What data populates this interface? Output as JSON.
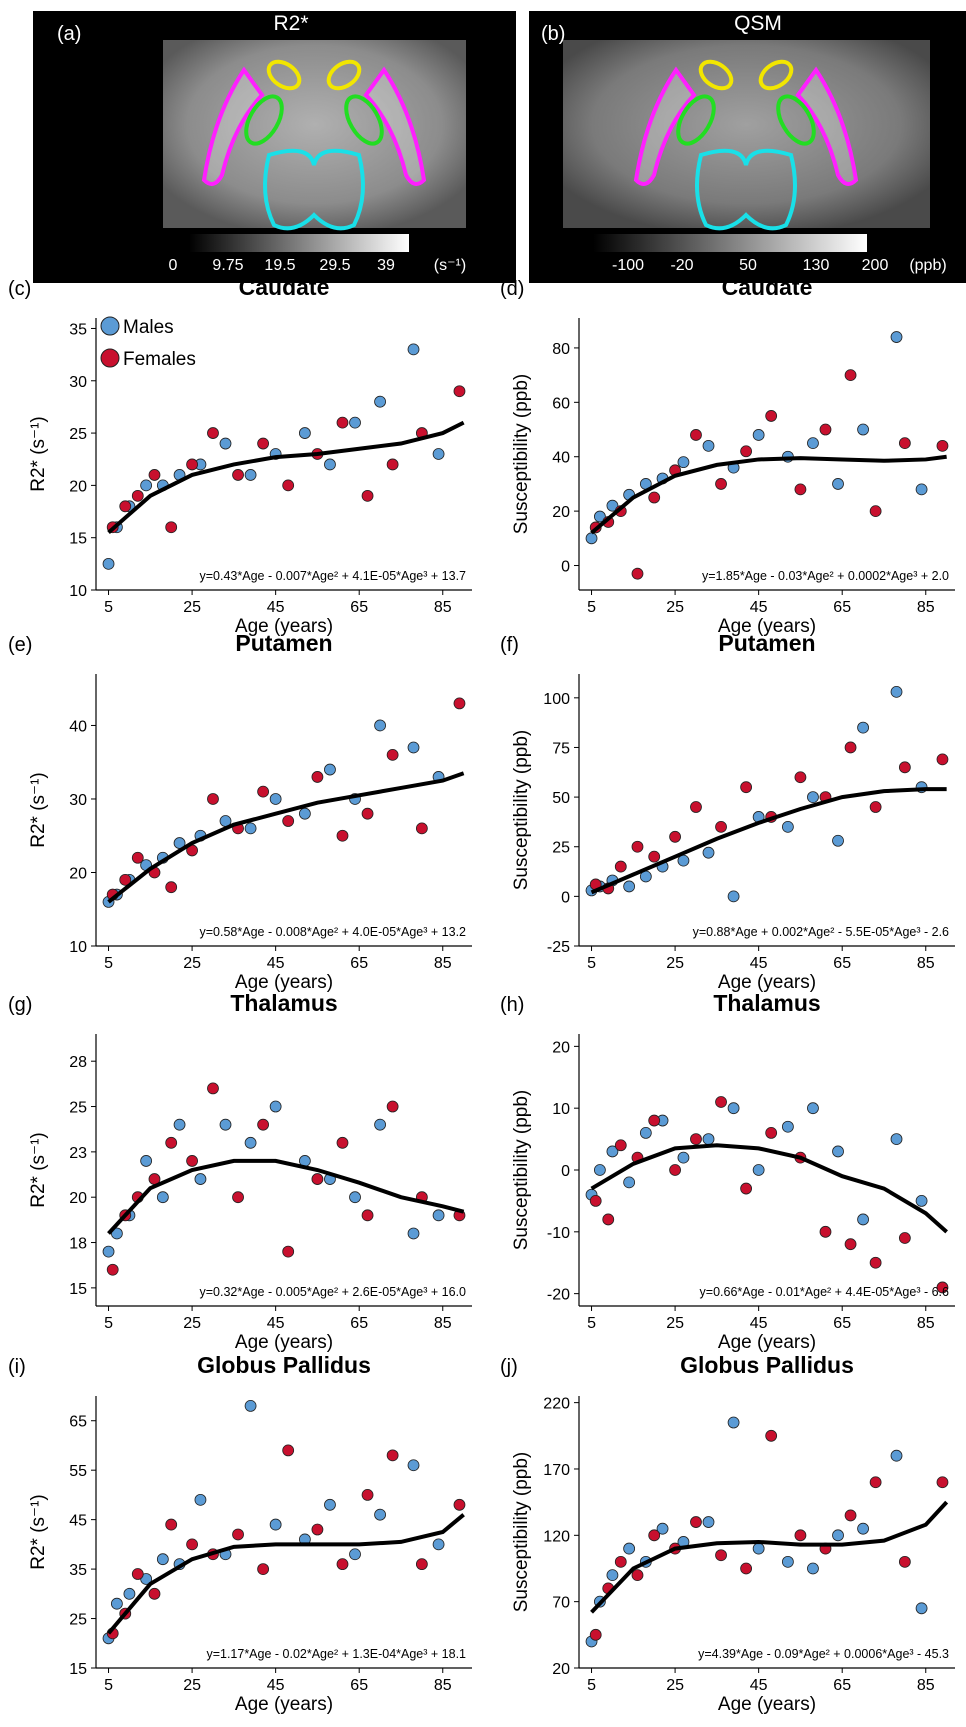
{
  "images": [
    {
      "label": "(a)",
      "title": "R2*",
      "colorbar_labels": [
        "0",
        "9.75",
        "19.5",
        "29.5",
        "39",
        "(s⁻¹)"
      ]
    },
    {
      "label": "(b)",
      "title": "QSM",
      "colorbar_labels": [
        "-100",
        "-20",
        "50",
        "130",
        "200",
        "(ppb)"
      ]
    }
  ],
  "chart_data": [
    {
      "type": "scatter",
      "label": "(c)",
      "title": "Caudate",
      "x_label": "Age (years)",
      "y_label": "R2* (s⁻¹)",
      "annotation": "y=0.43*Age - 0.007*Age² + 4.1E-05*Age³ + 13.7",
      "legend": "upper left",
      "xlim": [
        2,
        92
      ],
      "xticks": [
        5,
        25,
        45,
        65,
        85
      ],
      "ylim": [
        10,
        36
      ],
      "yticks": [
        10,
        15,
        20,
        25,
        30,
        35
      ],
      "series": [
        {
          "name": "Males",
          "color": "#5b9bd5",
          "x": [
            5,
            7,
            10,
            14,
            18,
            22,
            27,
            33,
            39,
            45,
            52,
            58,
            64,
            70,
            78,
            84
          ],
          "values": [
            12.5,
            16,
            18,
            20,
            20,
            21,
            22,
            24,
            21,
            23,
            25,
            22,
            26,
            28,
            33,
            23
          ]
        },
        {
          "name": "Females",
          "color": "#c8102e",
          "x": [
            6,
            9,
            12,
            16,
            20,
            25,
            30,
            36,
            42,
            48,
            55,
            61,
            67,
            73,
            80,
            89
          ],
          "values": [
            16,
            18,
            19,
            21,
            16,
            22,
            25,
            21,
            24,
            20,
            23,
            26,
            19,
            22,
            25,
            29
          ]
        }
      ],
      "fit": {
        "color": "#000000",
        "x": [
          5,
          15,
          25,
          35,
          45,
          55,
          65,
          75,
          85,
          90
        ],
        "values": [
          15.5,
          19,
          21,
          22,
          22.7,
          23,
          23.5,
          24,
          25,
          26
        ]
      }
    },
    {
      "type": "scatter",
      "label": "(d)",
      "title": "Caudate",
      "x_label": "Age (years)",
      "y_label": "Susceptibility (ppb)",
      "annotation": "y=1.85*Age - 0.03*Age² + 0.0002*Age³ + 2.0",
      "xlim": [
        2,
        92
      ],
      "xticks": [
        5,
        25,
        45,
        65,
        85
      ],
      "ylim": [
        -9,
        91
      ],
      "yticks": [
        0,
        20,
        40,
        60,
        80
      ],
      "series": [
        {
          "color": "#5b9bd5",
          "x": [
            5,
            7,
            10,
            14,
            18,
            22,
            27,
            33,
            39,
            45,
            52,
            58,
            64,
            70,
            78,
            84
          ],
          "values": [
            10,
            18,
            22,
            26,
            30,
            32,
            38,
            44,
            36,
            48,
            40,
            45,
            30,
            50,
            84,
            28
          ]
        },
        {
          "color": "#c8102e",
          "x": [
            6,
            9,
            12,
            16,
            20,
            25,
            30,
            36,
            42,
            48,
            55,
            61,
            67,
            73,
            80,
            89
          ],
          "values": [
            14,
            16,
            20,
            -3,
            25,
            35,
            48,
            30,
            42,
            55,
            28,
            50,
            70,
            20,
            45,
            44
          ]
        }
      ],
      "fit": {
        "color": "#000000",
        "x": [
          5,
          15,
          25,
          35,
          45,
          55,
          65,
          75,
          85,
          90
        ],
        "values": [
          12,
          25,
          33,
          37,
          39,
          39.5,
          39,
          38.5,
          39,
          40
        ]
      }
    },
    {
      "type": "scatter",
      "label": "(e)",
      "title": "Putamen",
      "x_label": "Age (years)",
      "y_label": "R2* (s⁻¹)",
      "annotation": "y=0.58*Age - 0.008*Age² + 4.0E-05*Age³ + 13.2",
      "xlim": [
        2,
        92
      ],
      "xticks": [
        5,
        25,
        45,
        65,
        85
      ],
      "ylim": [
        10,
        47
      ],
      "yticks": [
        10,
        20,
        30,
        40
      ],
      "series": [
        {
          "color": "#5b9bd5",
          "x": [
            5,
            7,
            10,
            14,
            18,
            22,
            27,
            33,
            39,
            45,
            52,
            58,
            64,
            70,
            78,
            84
          ],
          "values": [
            16,
            17,
            19,
            21,
            22,
            24,
            25,
            27,
            26,
            30,
            28,
            34,
            30,
            40,
            37,
            33
          ]
        },
        {
          "color": "#c8102e",
          "x": [
            6,
            9,
            12,
            16,
            20,
            25,
            30,
            36,
            42,
            48,
            55,
            61,
            67,
            73,
            80,
            89
          ],
          "values": [
            17,
            19,
            22,
            20,
            18,
            23,
            30,
            26,
            31,
            27,
            33,
            25,
            28,
            36,
            26,
            43
          ]
        }
      ],
      "fit": {
        "color": "#000000",
        "x": [
          5,
          15,
          25,
          35,
          45,
          55,
          65,
          75,
          85,
          90
        ],
        "values": [
          16,
          20.5,
          24,
          26.5,
          28,
          29.5,
          30.5,
          31.5,
          32.5,
          33.5
        ]
      }
    },
    {
      "type": "scatter",
      "label": "(f)",
      "title": "Putamen",
      "x_label": "Age (years)",
      "y_label": "Susceptibility (ppb)",
      "annotation": "y=0.88*Age + 0.002*Age² - 5.5E-05*Age³ - 2.6",
      "xlim": [
        2,
        92
      ],
      "xticks": [
        5,
        25,
        45,
        65,
        85
      ],
      "ylim": [
        -25,
        112
      ],
      "yticks": [
        -25,
        0,
        25,
        50,
        75,
        100
      ],
      "series": [
        {
          "color": "#5b9bd5",
          "x": [
            5,
            7,
            10,
            14,
            18,
            22,
            27,
            33,
            39,
            45,
            52,
            58,
            64,
            70,
            78,
            84
          ],
          "values": [
            3,
            5,
            8,
            5,
            10,
            15,
            18,
            22,
            0,
            40,
            35,
            50,
            28,
            85,
            103,
            55
          ]
        },
        {
          "color": "#c8102e",
          "x": [
            6,
            9,
            12,
            16,
            20,
            25,
            30,
            36,
            42,
            48,
            55,
            61,
            67,
            73,
            80,
            89
          ],
          "values": [
            6,
            4,
            15,
            25,
            20,
            30,
            45,
            35,
            55,
            40,
            60,
            50,
            75,
            45,
            65,
            69
          ]
        }
      ],
      "fit": {
        "color": "#000000",
        "x": [
          5,
          15,
          25,
          35,
          45,
          55,
          65,
          75,
          85,
          90
        ],
        "values": [
          2,
          11,
          20,
          29,
          37,
          44,
          50,
          53,
          54,
          54
        ]
      }
    },
    {
      "type": "scatter",
      "label": "(g)",
      "title": "Thalamus",
      "x_label": "Age (years)",
      "y_label": "R2* (s⁻¹)",
      "annotation": "y=0.32*Age - 0.005*Age² + 2.6E-05*Age³ + 16.0",
      "xlim": [
        2,
        92
      ],
      "xticks": [
        5,
        25,
        45,
        65,
        85
      ],
      "ylim": [
        14,
        29
      ],
      "yticks": [
        15,
        {
          "value": 17.5,
          "label": "18"
        },
        20,
        {
          "value": 22.5,
          "label": "23"
        },
        25,
        {
          "value": 27.5,
          "label": "28"
        }
      ],
      "series": [
        {
          "color": "#5b9bd5",
          "x": [
            5,
            7,
            10,
            14,
            18,
            22,
            27,
            33,
            39,
            45,
            52,
            58,
            64,
            70,
            78,
            84
          ],
          "values": [
            17,
            18,
            19,
            22,
            20,
            24,
            21,
            24,
            23,
            25,
            22,
            21,
            20,
            24,
            18,
            19
          ]
        },
        {
          "color": "#c8102e",
          "x": [
            6,
            9,
            12,
            16,
            20,
            25,
            30,
            36,
            42,
            48,
            55,
            61,
            67,
            73,
            80,
            89
          ],
          "values": [
            16,
            19,
            20,
            21,
            23,
            22,
            26,
            20,
            24,
            17,
            21,
            23,
            19,
            25,
            20,
            19
          ]
        }
      ],
      "fit": {
        "color": "#000000",
        "x": [
          5,
          15,
          25,
          35,
          45,
          55,
          65,
          75,
          85,
          90
        ],
        "values": [
          18,
          20.5,
          21.5,
          22,
          22,
          21.5,
          20.8,
          20,
          19.5,
          19.2
        ]
      }
    },
    {
      "type": "scatter",
      "label": "(h)",
      "title": "Thalamus",
      "x_label": "Age (years)",
      "y_label": "Susceptibility (ppb)",
      "annotation": "y=0.66*Age - 0.01*Age² + 4.4E-05*Age³ - 6.6",
      "xlim": [
        2,
        92
      ],
      "xticks": [
        5,
        25,
        45,
        65,
        85
      ],
      "ylim": [
        -22,
        22
      ],
      "yticks": [
        -20,
        -10,
        0,
        10,
        20
      ],
      "series": [
        {
          "color": "#5b9bd5",
          "x": [
            5,
            7,
            10,
            14,
            18,
            22,
            27,
            33,
            39,
            45,
            52,
            58,
            64,
            70,
            78,
            84
          ],
          "values": [
            -4,
            0,
            3,
            -2,
            6,
            8,
            2,
            5,
            10,
            0,
            7,
            10,
            3,
            -8,
            5,
            -5
          ]
        },
        {
          "color": "#c8102e",
          "x": [
            6,
            9,
            12,
            16,
            20,
            25,
            30,
            36,
            42,
            48,
            55,
            61,
            67,
            73,
            80,
            89
          ],
          "values": [
            -5,
            -8,
            4,
            2,
            8,
            0,
            5,
            11,
            -3,
            6,
            2,
            -10,
            -12,
            -15,
            -11,
            -19
          ]
        }
      ],
      "fit": {
        "color": "#000000",
        "x": [
          5,
          15,
          25,
          35,
          45,
          55,
          65,
          75,
          85,
          90
        ],
        "values": [
          -3,
          1,
          3.5,
          4,
          3.5,
          2,
          -1,
          -3,
          -7,
          -10
        ]
      }
    },
    {
      "type": "scatter",
      "label": "(i)",
      "title": "Globus Pallidus",
      "x_label": "Age (years)",
      "y_label": "R2* (s⁻¹)",
      "annotation": "y=1.17*Age - 0.02*Age² + 1.3E-04*Age³ + 18.1",
      "xlim": [
        2,
        92
      ],
      "xticks": [
        5,
        25,
        45,
        65,
        85
      ],
      "ylim": [
        15,
        70
      ],
      "yticks": [
        15,
        25,
        35,
        45,
        55,
        65
      ],
      "series": [
        {
          "color": "#5b9bd5",
          "x": [
            5,
            7,
            10,
            14,
            18,
            22,
            27,
            33,
            39,
            45,
            52,
            58,
            64,
            70,
            78,
            84
          ],
          "values": [
            21,
            28,
            30,
            33,
            37,
            36,
            49,
            38,
            68,
            44,
            41,
            48,
            38,
            46,
            56,
            40
          ]
        },
        {
          "color": "#c8102e",
          "x": [
            6,
            9,
            12,
            16,
            20,
            25,
            30,
            36,
            42,
            48,
            55,
            61,
            67,
            73,
            80,
            89
          ],
          "values": [
            22,
            26,
            34,
            30,
            44,
            40,
            38,
            42,
            35,
            59,
            43,
            36,
            50,
            58,
            36,
            48
          ]
        }
      ],
      "fit": {
        "color": "#000000",
        "x": [
          5,
          15,
          25,
          35,
          45,
          55,
          65,
          75,
          85,
          90
        ],
        "values": [
          22,
          32,
          37,
          39.5,
          40,
          40,
          40,
          40.5,
          42.5,
          46
        ]
      }
    },
    {
      "type": "scatter",
      "label": "(j)",
      "title": "Globus Pallidus",
      "x_label": "Age (years)",
      "y_label": "Susceptibility (ppb)",
      "annotation": "y=4.39*Age - 0.09*Age² + 0.0006*Age³ - 45.3",
      "xlim": [
        2,
        92
      ],
      "xticks": [
        5,
        25,
        45,
        65,
        85
      ],
      "ylim": [
        20,
        225
      ],
      "yticks": [
        20,
        70,
        120,
        170,
        220
      ],
      "series": [
        {
          "color": "#5b9bd5",
          "x": [
            5,
            7,
            10,
            14,
            18,
            22,
            27,
            33,
            39,
            45,
            52,
            58,
            64,
            70,
            78,
            84
          ],
          "values": [
            40,
            70,
            90,
            110,
            100,
            125,
            115,
            130,
            205,
            110,
            100,
            95,
            120,
            125,
            180,
            65
          ]
        },
        {
          "color": "#c8102e",
          "x": [
            6,
            9,
            12,
            16,
            20,
            25,
            30,
            36,
            42,
            48,
            55,
            61,
            67,
            73,
            80,
            89
          ],
          "values": [
            45,
            80,
            100,
            90,
            120,
            110,
            130,
            105,
            95,
            195,
            120,
            110,
            135,
            160,
            100,
            160
          ]
        }
      ],
      "fit": {
        "color": "#000000",
        "x": [
          5,
          15,
          25,
          35,
          45,
          55,
          65,
          75,
          85,
          90
        ],
        "values": [
          62,
          95,
          110,
          114,
          115,
          113,
          113,
          116,
          128,
          145
        ]
      }
    }
  ]
}
